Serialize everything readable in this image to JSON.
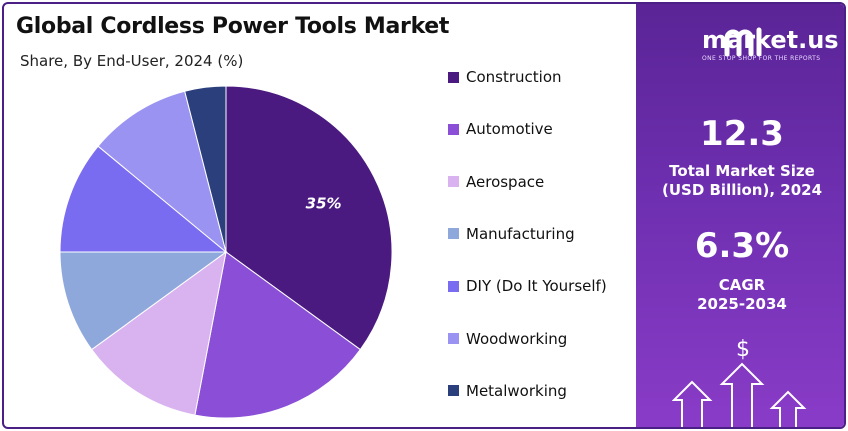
{
  "title": "Global Cordless Power Tools Market",
  "subtitle": "Share, By End-User, 2024 (%)",
  "chart_data": {
    "type": "pie",
    "title": "Global Cordless Power Tools Market",
    "subtitle": "Share, By End-User, 2024 (%)",
    "categories": [
      "Construction",
      "Automotive",
      "Aerospace",
      "Manufacturing",
      "DIY (Do It Yourself)",
      "Woodworking",
      "Metalworking"
    ],
    "values": [
      35,
      18,
      12,
      10,
      11,
      10,
      4
    ],
    "colors": [
      "#4a1a80",
      "#8a4fd6",
      "#d9b2f0",
      "#8fa8dc",
      "#7a6cf0",
      "#9b93f2",
      "#2a3f7c"
    ],
    "data_labels": [
      {
        "category": "Construction",
        "text": "35%"
      }
    ],
    "legend_position": "right"
  },
  "sidebar": {
    "logo_name": "market.us",
    "logo_tagline": "ONE STOP SHOP FOR THE REPORTS",
    "market_size_value": "12.3",
    "market_size_label_1": "Total Market Size",
    "market_size_label_2": "(USD Billion), 2024",
    "cagr_value": "6.3%",
    "cagr_label_1": "CAGR",
    "cagr_label_2": "2025-2034",
    "dollar_symbol": "$"
  }
}
